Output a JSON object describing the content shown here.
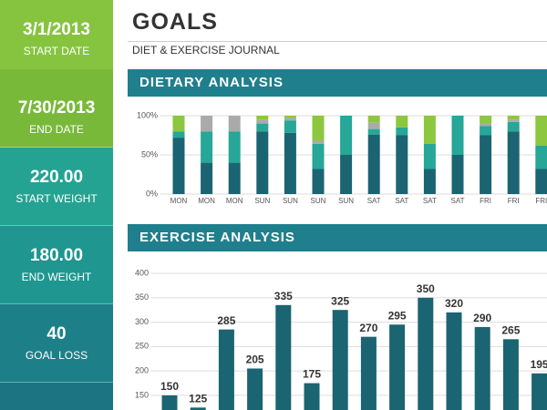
{
  "sidebar": [
    {
      "value": "3/1/2013",
      "label": "START DATE"
    },
    {
      "value": "7/30/2013",
      "label": "END DATE"
    },
    {
      "value": "220.00",
      "label": "START WEIGHT"
    },
    {
      "value": "180.00",
      "label": "END WEIGHT"
    },
    {
      "value": "40",
      "label": "GOAL LOSS"
    }
  ],
  "header": {
    "title": "GOALS",
    "subtitle": "DIET & EXERCISE JOURNAL"
  },
  "sections": [
    "DIETARY ANALYSIS",
    "EXERCISE ANALYSIS"
  ],
  "chart_data": [
    {
      "type": "stacked_bar",
      "categories": [
        "MON",
        "MON",
        "MON",
        "SUN",
        "SUN",
        "SUN",
        "SUN",
        "SAT",
        "SAT",
        "SAT",
        "SAT",
        "FRI",
        "FRI",
        "FRI"
      ],
      "series": [
        {
          "color": "#1b6472",
          "values": [
            72,
            40,
            40,
            80,
            78,
            32,
            50,
            76,
            75,
            32,
            50,
            75,
            80,
            32
          ]
        },
        {
          "color": "#26a797",
          "values": [
            8,
            40,
            40,
            10,
            16,
            32,
            50,
            7,
            10,
            32,
            50,
            12,
            12,
            30
          ]
        },
        {
          "color": "#aaaaaa",
          "values": [
            0,
            20,
            20,
            5,
            3,
            4,
            0,
            8,
            0,
            0,
            0,
            3,
            3,
            0
          ]
        },
        {
          "color": "#8dc63f",
          "values": [
            20,
            0,
            0,
            5,
            3,
            32,
            0,
            9,
            15,
            36,
            0,
            10,
            5,
            38
          ]
        }
      ],
      "ylim": [
        0,
        100
      ],
      "yticks": [
        {
          "value": 0,
          "label": "0%"
        },
        {
          "value": 50,
          "label": "50%"
        },
        {
          "value": 100,
          "label": "100%"
        }
      ],
      "grid": true
    },
    {
      "type": "bar",
      "values": [
        150,
        125,
        285,
        205,
        335,
        175,
        325,
        270,
        295,
        350,
        320,
        290,
        265,
        195
      ],
      "color": "#1b6472",
      "ylim": [
        120,
        400
      ],
      "yticks": [
        150,
        200,
        250,
        300,
        350,
        400
      ],
      "grid": true
    }
  ]
}
